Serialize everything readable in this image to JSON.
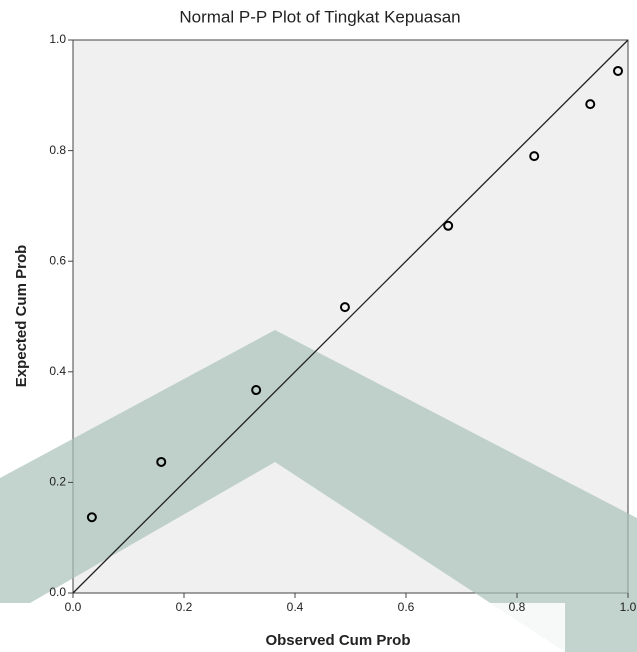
{
  "chart_data": {
    "type": "scatter",
    "title": "Normal P-P Plot of Tingkat Kepuasan",
    "x_label": "Observed Cum Prob",
    "y_label": "Expected Cum Prob",
    "x": [
      0.034,
      0.159,
      0.33,
      0.49,
      0.676,
      0.831,
      0.932,
      0.982
    ],
    "values": [
      0.137,
      0.237,
      0.367,
      0.517,
      0.664,
      0.79,
      0.884,
      0.944
    ],
    "color": "#000000",
    "xlim": [
      0,
      1
    ],
    "ylim": [
      0,
      1
    ],
    "xticks": [
      {
        "value": 0,
        "label": "0.0"
      },
      0.2,
      0.4,
      0.6,
      0.8,
      {
        "value": 1,
        "label": "1.0"
      }
    ],
    "yticks": [
      {
        "value": 0,
        "label": "0.0"
      },
      0.2,
      0.4,
      0.6,
      0.8,
      {
        "value": 1,
        "label": "1.0"
      }
    ],
    "reference_line": true
  }
}
